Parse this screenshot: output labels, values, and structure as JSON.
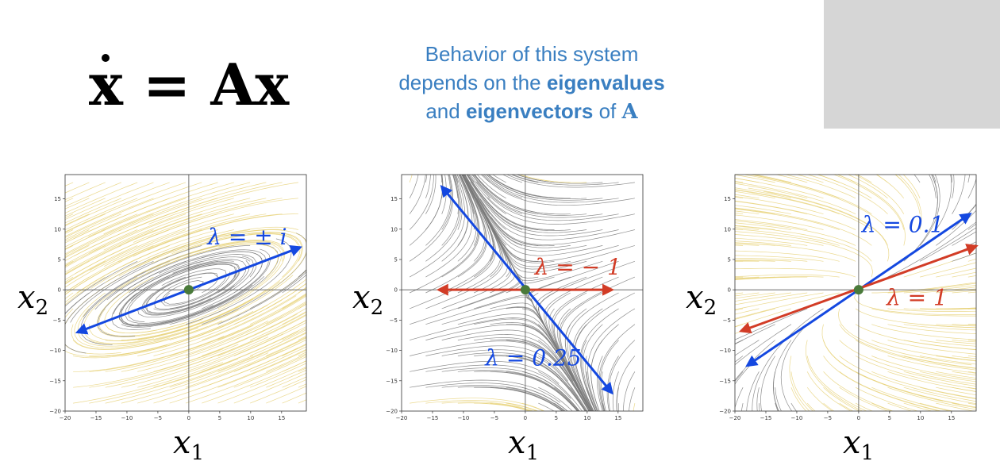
{
  "equation": {
    "xdot": "x",
    "equals": " = ",
    "A": "A",
    "x": "x"
  },
  "behavior": {
    "line1": "Behavior of this system",
    "line2_pre": "depends on the ",
    "line2_bold": "eigenvalues",
    "line3_pre": "and ",
    "line3_bold": "eigenvectors",
    "line3_mid": " of ",
    "line3_A": "A"
  },
  "colors": {
    "blue_vector": "#1448e0",
    "red_vector": "#d23c26",
    "origin": "#4a7a3a",
    "text_blue": "#3a7fc1",
    "stream_gray": "#7a7a7a",
    "stream_yellow": "#e8d27a"
  },
  "chart_data": [
    {
      "type": "streamplot",
      "xlabel": "x",
      "xlabel_sub": "1",
      "ylabel": "x",
      "ylabel_sub": "2",
      "xlim": [
        -20,
        19
      ],
      "ylim": [
        -20,
        19
      ],
      "xticks": [
        "−20",
        "−15",
        "−10",
        "−5",
        "0",
        "5",
        "10",
        "15"
      ],
      "yticks": [
        "15",
        "10",
        "5",
        "0",
        "−5",
        "−10",
        "−15",
        "−20"
      ],
      "flow": "center",
      "eigenvectors": [
        {
          "color": "blue",
          "x1": -18,
          "y1": -7,
          "x2": 18,
          "y2": 7,
          "both": true
        }
      ],
      "labels": [
        {
          "text": "λ = ± i",
          "color": "blue",
          "x": 3,
          "y": 7.5
        }
      ]
    },
    {
      "type": "streamplot",
      "xlabel": "x",
      "xlabel_sub": "1",
      "ylabel": "x",
      "ylabel_sub": "2",
      "xlim": [
        -20,
        19
      ],
      "ylim": [
        -20,
        19
      ],
      "xticks": [
        "−20",
        "−15",
        "−10",
        "−5",
        "0",
        "5",
        "10",
        "15"
      ],
      "yticks": [
        "15",
        "10",
        "5",
        "0",
        "−5",
        "−10",
        "−15",
        "−20"
      ],
      "flow": "saddle",
      "eigenvectors": [
        {
          "color": "blue",
          "x1": -13.5,
          "y1": 17,
          "x2": 14,
          "y2": -17,
          "both": true
        },
        {
          "color": "red",
          "x1": -14,
          "y1": 0,
          "x2": 14,
          "y2": 0,
          "both": true
        }
      ],
      "labels": [
        {
          "text": "λ = − 1",
          "color": "red",
          "x": 1.5,
          "y": 2.5
        },
        {
          "text": "λ = 0.25",
          "color": "blue",
          "x": -6.5,
          "y": -12.5
        }
      ]
    },
    {
      "type": "streamplot",
      "xlabel": "x",
      "xlabel_sub": "1",
      "ylabel": "x",
      "ylabel_sub": "2",
      "xlim": [
        -20,
        19
      ],
      "ylim": [
        -20,
        19
      ],
      "xticks": [
        "−20",
        "−15",
        "−10",
        "−5",
        "0",
        "5",
        "10",
        "15"
      ],
      "yticks": [
        "15",
        "10",
        "5",
        "0",
        "−5",
        "−10",
        "−15",
        "−20"
      ],
      "flow": "source",
      "eigenvectors": [
        {
          "color": "blue",
          "x1": -18,
          "y1": -12.5,
          "x2": 18,
          "y2": 12.5,
          "both": true
        },
        {
          "color": "red",
          "x1": -19,
          "y1": -6.8,
          "x2": 19,
          "y2": 7.2,
          "both": true
        }
      ],
      "labels": [
        {
          "text": "λ = 0.1",
          "color": "blue",
          "x": 0.5,
          "y": 9.5
        },
        {
          "text": "λ = 1",
          "color": "red",
          "x": 4.5,
          "y": -2.5
        }
      ]
    }
  ]
}
